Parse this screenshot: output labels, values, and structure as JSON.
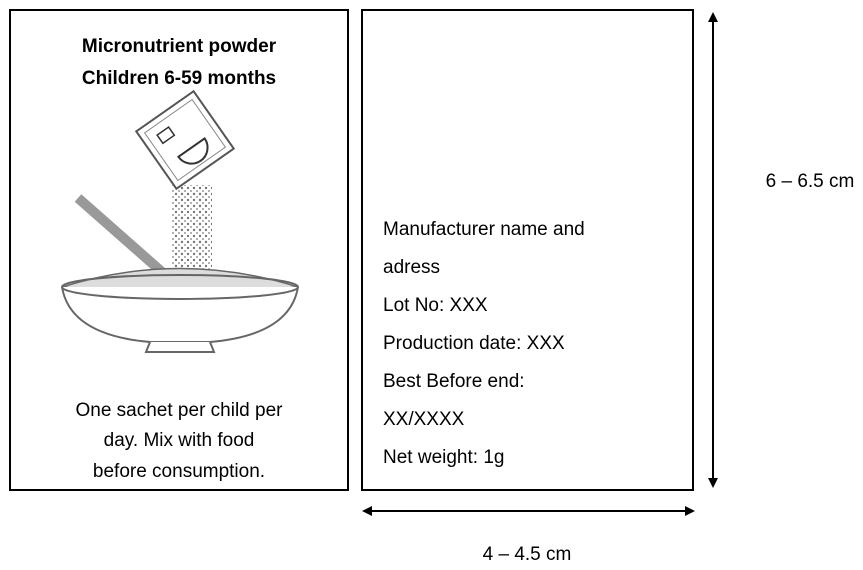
{
  "left_panel": {
    "title": [
      "Micronutrient powder",
      "Children 6-59 months"
    ],
    "caption": [
      "One sachet per child per",
      "day. Mix with food",
      "before consumption."
    ]
  },
  "right_panel": {
    "lines": [
      "Manufacturer name and",
      "adress",
      "Lot No: XXX",
      "Production date: XXX",
      "Best Before end:",
      "XX/XXXX",
      "Net weight: 1g"
    ]
  },
  "dimensions": {
    "height": "6 – 6.5 cm",
    "width": "4 – 4.5 cm"
  }
}
